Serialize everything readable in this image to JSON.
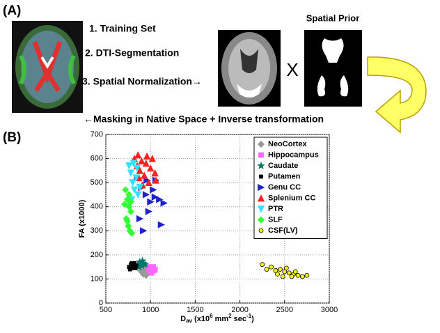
{
  "panel_a": {
    "label": "(A)",
    "steps": [
      "1. Training Set",
      "2. DTI-Segmentation",
      "3. Spatial Normalization→"
    ],
    "times": "X",
    "prior_title": "Spatial Prior",
    "masking": "←Masking in Native Space + Inverse transformation"
  },
  "chart_data": {
    "type": "scatter",
    "panel_label": "(B)",
    "ylabel": "FA (x1000)",
    "xlabel": {
      "d": "D",
      "sub": "av",
      "t1": " (x10",
      "sup1": "6",
      "t2": " mm",
      "sup2": "2",
      "t3": " sec",
      "sup3": "-1",
      "t4": ")"
    },
    "xlim": [
      500,
      3000
    ],
    "xticks": [
      500,
      1000,
      1500,
      2000,
      2500,
      3000
    ],
    "ylim": [
      0,
      700
    ],
    "yticks": [
      0,
      100,
      200,
      300,
      400,
      500,
      600,
      700
    ],
    "grid": true,
    "legend": "upper right",
    "series": [
      {
        "name": "NeoCortex",
        "color": "#999999",
        "marker": "diamond",
        "x": [
          900,
          920,
          940,
          960,
          910,
          950,
          930,
          970,
          890,
          945
        ],
        "values": [
          130,
          120,
          125,
          135,
          140,
          115,
          145,
          125,
          135,
          130
        ]
      },
      {
        "name": "Hippocampus",
        "color": "#ff66ff",
        "marker": "square",
        "x": [
          980,
          1000,
          1020,
          1040,
          990,
          1010,
          1030,
          1050
        ],
        "values": [
          140,
          130,
          145,
          135,
          150,
          125,
          150,
          140
        ]
      },
      {
        "name": "Caudate",
        "color": "#00796b",
        "marker": "star",
        "x": [
          860,
          880,
          900,
          920,
          940,
          870,
          910
        ],
        "values": [
          160,
          170,
          155,
          165,
          160,
          150,
          175
        ]
      },
      {
        "name": "Putamen",
        "color": "#000000",
        "marker": "point",
        "x": [
          760,
          780,
          800,
          820,
          840,
          770,
          810,
          790,
          830
        ],
        "values": [
          150,
          160,
          145,
          165,
          155,
          140,
          155,
          165,
          145
        ]
      },
      {
        "name": "Genu CC",
        "color": "#1f22cc",
        "marker": "triright",
        "x": [
          850,
          900,
          950,
          1000,
          1050,
          1100,
          1150,
          1120,
          920,
          980,
          880,
          1030,
          960,
          1060
        ],
        "values": [
          520,
          480,
          450,
          420,
          440,
          430,
          415,
          325,
          300,
          380,
          350,
          470,
          510,
          510
        ]
      },
      {
        "name": "Splenium CC",
        "color": "#ff2020",
        "marker": "triup",
        "x": [
          820,
          860,
          900,
          950,
          1000,
          1050,
          880,
          930,
          980,
          1020,
          850,
          960,
          1060,
          910,
          870
        ],
        "values": [
          600,
          615,
          590,
          580,
          560,
          540,
          550,
          530,
          500,
          600,
          570,
          610,
          510,
          490,
          520
        ]
      },
      {
        "name": "PTR",
        "color": "#33e0ff",
        "marker": "tridown",
        "x": [
          760,
          780,
          800,
          820,
          840,
          860,
          790,
          810,
          850,
          770,
          880
        ],
        "values": [
          570,
          540,
          500,
          470,
          520,
          450,
          430,
          580,
          560,
          410,
          480
        ]
      },
      {
        "name": "SLF",
        "color": "#33ff33",
        "marker": "diamond",
        "x": [
          720,
          740,
          760,
          780,
          730,
          750,
          770,
          790,
          710,
          760,
          740,
          780
        ],
        "values": [
          470,
          430,
          400,
          380,
          350,
          320,
          300,
          290,
          410,
          450,
          340,
          420
        ]
      },
      {
        "name": "CSF(LV)",
        "color": "#ffff00",
        "marker": "circle",
        "x": [
          2250,
          2300,
          2350,
          2400,
          2450,
          2500,
          2550,
          2600,
          2650,
          2700,
          2750,
          2420,
          2520,
          2620,
          2480,
          2580
        ],
        "values": [
          160,
          140,
          150,
          135,
          140,
          130,
          125,
          120,
          115,
          110,
          115,
          120,
          145,
          130,
          110,
          110
        ]
      }
    ]
  }
}
